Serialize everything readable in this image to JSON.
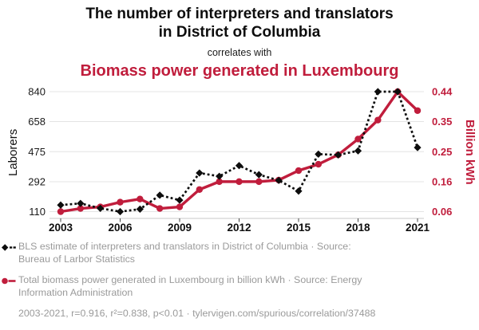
{
  "header": {
    "title_line1": "The number of interpreters and translators",
    "title_line2": "in District of Columbia",
    "connector": "correlates with",
    "subtitle": "Biomass power generated in Luxembourg"
  },
  "colors": {
    "accent_red": "#c01d3c",
    "series_black": "#0d0d0d",
    "legend_gray": "#9a9a9a",
    "gridline": "#e4e4e4",
    "axis_line": "#c9c9c9",
    "tick_mark": "#4a4a4a"
  },
  "chart_data": {
    "type": "line",
    "x": [
      2003,
      2004,
      2005,
      2006,
      2007,
      2008,
      2009,
      2010,
      2011,
      2012,
      2013,
      2014,
      2015,
      2016,
      2017,
      2018,
      2019,
      2020,
      2021
    ],
    "x_ticks": [
      2003,
      2006,
      2009,
      2012,
      2015,
      2018,
      2021
    ],
    "grid": true,
    "legend_position": "bottom",
    "left_axis": {
      "label": "Laborers",
      "ticks": [
        110,
        292,
        475,
        658,
        840
      ],
      "range": [
        110,
        840
      ]
    },
    "right_axis": {
      "label": "Billion kWh",
      "ticks": [
        "0.06",
        "0.16",
        "0.25",
        "0.35",
        "0.44"
      ],
      "range": [
        0.06,
        0.44
      ]
    },
    "series": [
      {
        "name": "BLS estimate of interpreters and translators in District of Columbia",
        "axis": "left",
        "style": "dotted-diamond",
        "color": "#0d0d0d",
        "values": [
          150,
          160,
          130,
          110,
          125,
          210,
          180,
          345,
          325,
          390,
          335,
          300,
          235,
          460,
          455,
          480,
          840,
          840,
          500
        ]
      },
      {
        "name": "Total biomass power generated in Luxembourg in billion kWh",
        "axis": "right",
        "style": "solid-circle",
        "color": "#c01d3c",
        "values": [
          0.06,
          0.07,
          0.075,
          0.09,
          0.1,
          0.07,
          0.075,
          0.13,
          0.155,
          0.155,
          0.155,
          0.16,
          0.19,
          0.21,
          0.24,
          0.29,
          0.35,
          0.44,
          0.38
        ]
      }
    ]
  },
  "legend": {
    "entries": [
      {
        "marker": "black-diamond-dotted",
        "label": "BLS estimate of interpreters and translators in District of Columbia · Source: Bureau of Larbor Statistics"
      },
      {
        "marker": "red-circle-solid",
        "label": "Total biomass power generated in Luxembourg in billion kWh · Source: Energy Information Administration"
      }
    ]
  },
  "footer": {
    "stats": "2003-2021, r=0.916, r²=0.838, p<0.01",
    "separator": "·",
    "url": "tylervigen.com/spurious/correlation/37488"
  }
}
